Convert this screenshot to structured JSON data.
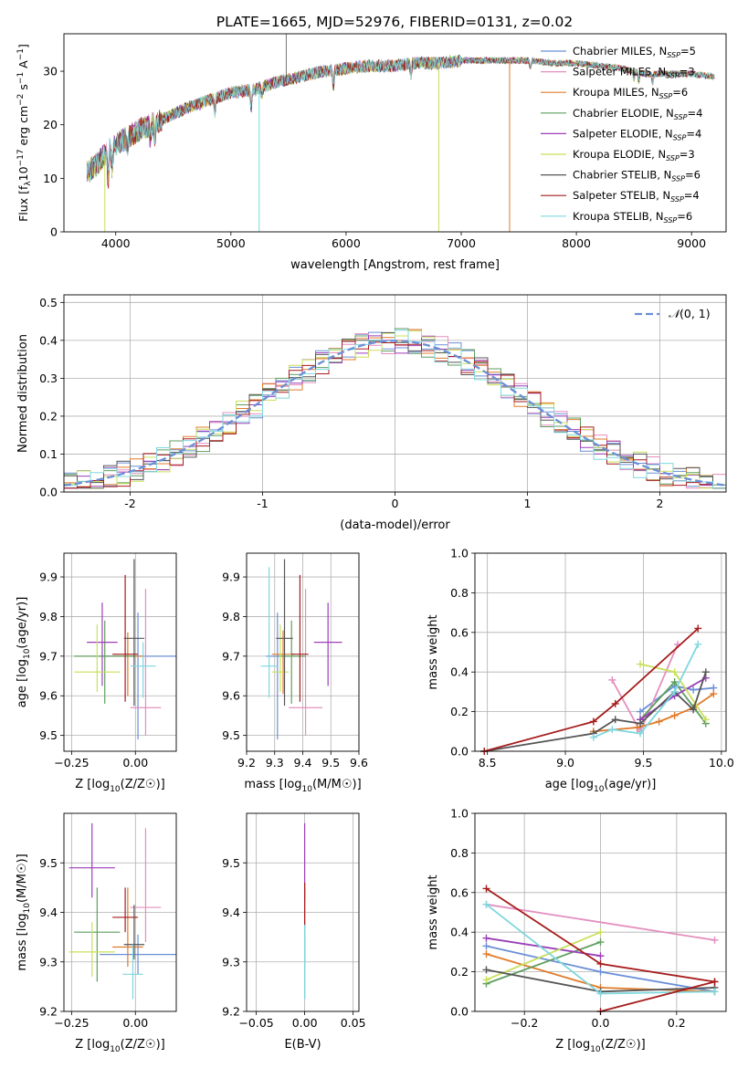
{
  "figure": {
    "title": "PLATE=1665, MJD=52976, FIBERID=0131, z=0.02"
  },
  "colors": {
    "Chabrier MILES": "#6a8fd6",
    "Salpeter MILES": "#e38fbf",
    "Kroupa MILES": "#e07b2a",
    "Chabrier ELODIE": "#5f9e5f",
    "Salpeter ELODIE": "#9b3fb8",
    "Kroupa ELODIE": "#c9e05a",
    "Chabrier STELIB": "#555555",
    "Salpeter STELIB": "#a61c1c",
    "Kroupa STELIB": "#7fd7de",
    "normal": "#6a8fd6"
  },
  "legend": [
    {
      "key": "Chabrier MILES",
      "text": "Chabrier MILES, N",
      "n": "=5"
    },
    {
      "key": "Salpeter MILES",
      "text": "Salpeter MILES, N",
      "n": "=3"
    },
    {
      "key": "Kroupa MILES",
      "text": "Kroupa MILES, N",
      "n": "=6"
    },
    {
      "key": "Chabrier ELODIE",
      "text": "Chabrier ELODIE, N",
      "n": "=4"
    },
    {
      "key": "Salpeter ELODIE",
      "text": "Salpeter ELODIE, N",
      "n": "=4"
    },
    {
      "key": "Kroupa ELODIE",
      "text": "Kroupa ELODIE, N",
      "n": "=3"
    },
    {
      "key": "Chabrier STELIB",
      "text": "Chabrier STELIB, N",
      "n": "=6"
    },
    {
      "key": "Salpeter STELIB",
      "text": "Salpeter STELIB, N",
      "n": "=4"
    },
    {
      "key": "Kroupa STELIB",
      "text": "Kroupa STELIB, N",
      "n": "=6"
    }
  ],
  "legend_sub": "SSP",
  "chart_data": [
    {
      "id": "spectrum",
      "type": "line",
      "xlabel": "wavelength [Angstrom, rest frame]",
      "ylabel": "Flux [f",
      "xlim": [
        3550,
        9300
      ],
      "ylim": [
        0,
        37
      ],
      "xticks": [
        4000,
        5000,
        6000,
        7000,
        8000,
        9000
      ],
      "yticks": [
        0,
        10,
        20,
        30
      ],
      "grid": false,
      "legend_position": "right",
      "continuum": [
        [
          3750,
          11
        ],
        [
          3850,
          13
        ],
        [
          3950,
          15.5
        ],
        [
          4050,
          17
        ],
        [
          4200,
          19
        ],
        [
          4400,
          21
        ],
        [
          4600,
          23
        ],
        [
          4800,
          24.5
        ],
        [
          5000,
          26
        ],
        [
          5200,
          26.5
        ],
        [
          5400,
          28
        ],
        [
          5600,
          29
        ],
        [
          5800,
          30
        ],
        [
          6000,
          30.5
        ],
        [
          6200,
          31
        ],
        [
          6400,
          31
        ],
        [
          6600,
          31.5
        ],
        [
          6800,
          31.5
        ],
        [
          7000,
          32
        ],
        [
          7200,
          32
        ],
        [
          7400,
          32
        ],
        [
          7600,
          32
        ],
        [
          7800,
          31.5
        ],
        [
          8000,
          31.5
        ],
        [
          8200,
          31
        ],
        [
          8400,
          30.5
        ],
        [
          8600,
          29.5
        ],
        [
          8800,
          29.5
        ],
        [
          9000,
          29.5
        ],
        [
          9200,
          29
        ]
      ],
      "spikes": [
        {
          "x": 3905,
          "model": "Kroupa ELODIE"
        },
        {
          "x": 5245,
          "model": "Kroupa STELIB"
        },
        {
          "x": 6805,
          "model": "Kroupa ELODIE"
        },
        {
          "x": 7420,
          "model": "Kroupa MILES"
        }
      ]
    },
    {
      "id": "residuals",
      "type": "step-histogram",
      "xlabel": "(data-model)/error",
      "ylabel": "Normed distribution",
      "xlim": [
        -2.5,
        2.5
      ],
      "ylim": [
        0,
        0.52
      ],
      "xticks": [
        -2,
        -1,
        0,
        1,
        2
      ],
      "yticks": [
        0.0,
        0.1,
        0.2,
        0.3,
        0.4,
        0.5
      ],
      "grid": true,
      "bin_width": 0.1,
      "normal_label": "(0, 1)",
      "normal_label_prefix": "𝒩",
      "legend_position": "top-right"
    },
    {
      "id": "age-Z",
      "type": "errorbar",
      "xlabel": "Z [log",
      "ylabel": "age  [log",
      "xlim": [
        -0.28,
        0.16
      ],
      "ylim": [
        9.46,
        9.96
      ],
      "xticks": [
        -0.25,
        0.0
      ],
      "xticklabels": [
        "−0.25",
        "0.00"
      ],
      "yticks": [
        9.5,
        9.6,
        9.7,
        9.8,
        9.9
      ],
      "grid": true,
      "points": [
        {
          "model": "Chabrier MILES",
          "x": 0.01,
          "y": 9.7,
          "xerr": 0.15,
          "yerr": [
            0.21,
            0.11
          ]
        },
        {
          "model": "Salpeter MILES",
          "x": 0.04,
          "y": 9.57,
          "xerr": 0.06,
          "yerr": [
            0.07,
            0.3
          ]
        },
        {
          "model": "Kroupa MILES",
          "x": -0.03,
          "y": 9.7,
          "xerr": 0.06,
          "yerr": [
            0.1,
            0.06
          ]
        },
        {
          "model": "Chabrier ELODIE",
          "x": -0.12,
          "y": 9.7,
          "xerr": 0.12,
          "yerr": [
            0.12,
            0.09
          ]
        },
        {
          "model": "Salpeter ELODIE",
          "x": -0.13,
          "y": 9.735,
          "xerr": 0.06,
          "yerr": [
            0.11,
            0.1
          ]
        },
        {
          "model": "Kroupa ELODIE",
          "x": -0.15,
          "y": 9.66,
          "xerr": 0.09,
          "yerr": [
            0.05,
            0.12
          ]
        },
        {
          "model": "Chabrier STELIB",
          "x": -0.005,
          "y": 9.745,
          "xerr": 0.04,
          "yerr": [
            0.17,
            0.2
          ]
        },
        {
          "model": "Salpeter STELIB",
          "x": -0.04,
          "y": 9.705,
          "xerr": 0.05,
          "yerr": [
            0.12,
            0.2
          ]
        },
        {
          "model": "Kroupa STELIB",
          "x": 0.03,
          "y": 9.675,
          "xerr": 0.05,
          "yerr": [
            0.08,
            0.06
          ]
        }
      ]
    },
    {
      "id": "age-mass",
      "type": "errorbar",
      "xlabel": "mass [log",
      "ylabel": "",
      "xlim": [
        9.2,
        9.6
      ],
      "ylim": [
        9.46,
        9.96
      ],
      "xticks": [
        9.2,
        9.3,
        9.4,
        9.5,
        9.6
      ],
      "xticklabels": [
        "9.2",
        "9.3",
        "9.4",
        "9.5",
        "9.6"
      ],
      "yticks": [
        9.5,
        9.6,
        9.7,
        9.8,
        9.9
      ],
      "grid": true,
      "points": [
        {
          "model": "Chabrier MILES",
          "x": 9.31,
          "y": 9.7,
          "xerr": 0.04,
          "yerr": [
            0.21,
            0.11
          ]
        },
        {
          "model": "Salpeter MILES",
          "x": 9.41,
          "y": 9.57,
          "xerr": 0.06,
          "yerr": [
            0.07,
            0.3
          ]
        },
        {
          "model": "Kroupa MILES",
          "x": 9.33,
          "y": 9.705,
          "xerr": 0.04,
          "yerr": [
            0.1,
            0.06
          ]
        },
        {
          "model": "Chabrier ELODIE",
          "x": 9.36,
          "y": 9.7,
          "xerr": 0.05,
          "yerr": [
            0.12,
            0.09
          ]
        },
        {
          "model": "Salpeter ELODIE",
          "x": 9.49,
          "y": 9.735,
          "xerr": 0.05,
          "yerr": [
            0.11,
            0.1
          ]
        },
        {
          "model": "Kroupa ELODIE",
          "x": 9.32,
          "y": 9.66,
          "xerr": 0.03,
          "yerr": [
            0.05,
            0.12
          ]
        },
        {
          "model": "Chabrier STELIB",
          "x": 9.335,
          "y": 9.745,
          "xerr": 0.03,
          "yerr": [
            0.17,
            0.2
          ]
        },
        {
          "model": "Salpeter STELIB",
          "x": 9.39,
          "y": 9.705,
          "xerr": 0.03,
          "yerr": [
            0.12,
            0.2
          ]
        },
        {
          "model": "Kroupa STELIB",
          "x": 9.28,
          "y": 9.675,
          "xerr": 0.03,
          "yerr": [
            0.08,
            0.25
          ]
        }
      ]
    },
    {
      "id": "weight-age",
      "type": "line",
      "xlabel": "age  [log",
      "ylabel": "mass weight",
      "xlim": [
        8.42,
        10.03
      ],
      "ylim": [
        0,
        1
      ],
      "xticks": [
        8.5,
        9.0,
        9.5,
        10.0
      ],
      "xticklabels": [
        "8.5",
        "9.0",
        "9.5",
        "10.0"
      ],
      "yticks": [
        0.0,
        0.2,
        0.4,
        0.6,
        0.8,
        1.0
      ],
      "grid": true,
      "series": [
        {
          "model": "Chabrier MILES",
          "x": [
            9.48,
            9.7,
            9.82,
            9.95
          ],
          "y": [
            0.2,
            0.33,
            0.31,
            0.32
          ]
        },
        {
          "model": "Salpeter MILES",
          "x": [
            9.3,
            9.48,
            9.72
          ],
          "y": [
            0.36,
            0.1,
            0.54
          ]
        },
        {
          "model": "Kroupa MILES",
          "x": [
            9.18,
            9.46,
            9.6,
            9.7,
            9.82,
            9.95
          ],
          "y": [
            0.1,
            0.12,
            0.15,
            0.18,
            0.22,
            0.29
          ]
        },
        {
          "model": "Chabrier ELODIE",
          "x": [
            9.48,
            9.7,
            9.9
          ],
          "y": [
            0.16,
            0.35,
            0.14
          ]
        },
        {
          "model": "Salpeter ELODIE",
          "x": [
            9.48,
            9.7,
            9.9
          ],
          "y": [
            0.16,
            0.28,
            0.37
          ]
        },
        {
          "model": "Kroupa ELODIE",
          "x": [
            9.48,
            9.7,
            9.9
          ],
          "y": [
            0.44,
            0.4,
            0.16
          ]
        },
        {
          "model": "Chabrier STELIB",
          "x": [
            8.48,
            9.18,
            9.32,
            9.48,
            9.7,
            9.82,
            9.9
          ],
          "y": [
            0.0,
            0.09,
            0.16,
            0.14,
            0.3,
            0.21,
            0.4
          ]
        },
        {
          "model": "Salpeter STELIB",
          "x": [
            8.48,
            9.18,
            9.32,
            9.85
          ],
          "y": [
            0.0,
            0.15,
            0.24,
            0.62
          ]
        },
        {
          "model": "Kroupa STELIB",
          "x": [
            9.18,
            9.3,
            9.48,
            9.7,
            9.85
          ],
          "y": [
            0.07,
            0.11,
            0.09,
            0.3,
            0.54
          ]
        }
      ]
    },
    {
      "id": "mass-Z",
      "type": "errorbar",
      "xlabel": "Z [log",
      "ylabel": "mass [log",
      "xlim": [
        -0.28,
        0.16
      ],
      "ylim": [
        9.2,
        9.6
      ],
      "xticks": [
        -0.25,
        0.0
      ],
      "xticklabels": [
        "−0.25",
        "0.00"
      ],
      "yticks": [
        9.2,
        9.3,
        9.4,
        9.5
      ],
      "grid": true,
      "points": [
        {
          "model": "Chabrier MILES",
          "x": 0.01,
          "y": 9.315,
          "xerr": 0.15,
          "yerr": [
            0.04,
            0.04
          ]
        },
        {
          "model": "Salpeter MILES",
          "x": 0.04,
          "y": 9.41,
          "xerr": 0.06,
          "yerr": [
            0.07,
            0.16
          ]
        },
        {
          "model": "Kroupa MILES",
          "x": -0.03,
          "y": 9.33,
          "xerr": 0.06,
          "yerr": [
            0.04,
            0.12
          ]
        },
        {
          "model": "Chabrier ELODIE",
          "x": -0.15,
          "y": 9.36,
          "xerr": 0.09,
          "yerr": [
            0.1,
            0.09
          ]
        },
        {
          "model": "Salpeter ELODIE",
          "x": -0.17,
          "y": 9.49,
          "xerr": 0.09,
          "yerr": [
            0.06,
            0.09
          ]
        },
        {
          "model": "Kroupa ELODIE",
          "x": -0.17,
          "y": 9.32,
          "xerr": 0.09,
          "yerr": [
            0.05,
            0.06
          ]
        },
        {
          "model": "Chabrier STELIB",
          "x": -0.005,
          "y": 9.335,
          "xerr": 0.04,
          "yerr": [
            0.03,
            0.08
          ]
        },
        {
          "model": "Salpeter STELIB",
          "x": -0.04,
          "y": 9.39,
          "xerr": 0.05,
          "yerr": [
            0.03,
            0.06
          ]
        },
        {
          "model": "Kroupa STELIB",
          "x": -0.01,
          "y": 9.275,
          "xerr": 0.04,
          "yerr": [
            0.05,
            0.06
          ]
        }
      ]
    },
    {
      "id": "mass-EBV",
      "type": "errorbar",
      "xlabel": "E(B-V)",
      "ylabel": "",
      "xlim": [
        -0.06,
        0.056
      ],
      "ylim": [
        9.2,
        9.6
      ],
      "xticks": [
        -0.05,
        0.0,
        0.05
      ],
      "xticklabels": [
        "−0.05",
        "0.00",
        "0.05"
      ],
      "yticks": [
        9.2,
        9.3,
        9.4,
        9.5
      ],
      "grid": true,
      "points": [
        {
          "model": "Chabrier MILES",
          "x": 0.0,
          "y": 9.315,
          "xerr": 0,
          "yerr": [
            0.09,
            0.04
          ]
        },
        {
          "model": "Kroupa MILES",
          "x": 0.0,
          "y": 9.33,
          "xerr": 0,
          "yerr": [
            0.03,
            0.12
          ]
        },
        {
          "model": "Salpeter ELODIE",
          "x": 0.0,
          "y": 9.49,
          "xerr": 0,
          "yerr": [
            0.07,
            0.09
          ]
        },
        {
          "model": "Salpeter STELIB",
          "x": 0.0,
          "y": 9.39,
          "xerr": 0,
          "yerr": [
            0.02,
            0.07
          ]
        },
        {
          "model": "Kroupa STELIB",
          "x": 0.0,
          "y": 9.275,
          "xerr": 0,
          "yerr": [
            0.05,
            0.1
          ]
        }
      ]
    },
    {
      "id": "weight-Z",
      "type": "line",
      "xlabel": "Z [log",
      "ylabel": "mass weight",
      "xlim": [
        -0.33,
        0.33
      ],
      "ylim": [
        0,
        1
      ],
      "xticks": [
        -0.2,
        0.0,
        0.2
      ],
      "xticklabels": [
        "−0.2",
        "0.0",
        "0.2"
      ],
      "yticks": [
        0.0,
        0.2,
        0.4,
        0.6,
        0.8,
        1.0
      ],
      "grid": true,
      "series": [
        {
          "model": "Chabrier MILES",
          "x": [
            -0.3,
            0.0,
            0.3
          ],
          "y": [
            0.33,
            0.2,
            0.1
          ]
        },
        {
          "model": "Salpeter MILES",
          "x": [
            -0.3,
            0.3
          ],
          "y": [
            0.54,
            0.36
          ]
        },
        {
          "model": "Kroupa MILES",
          "x": [
            -0.3,
            0.0,
            0.3
          ],
          "y": [
            0.29,
            0.12,
            0.1
          ]
        },
        {
          "model": "Chabrier ELODIE",
          "x": [
            -0.3,
            0.0
          ],
          "y": [
            0.14,
            0.35
          ]
        },
        {
          "model": "Salpeter ELODIE",
          "x": [
            -0.3,
            0.0
          ],
          "y": [
            0.37,
            0.28
          ]
        },
        {
          "model": "Kroupa ELODIE",
          "x": [
            -0.3,
            0.0
          ],
          "y": [
            0.16,
            0.4
          ]
        },
        {
          "model": "Chabrier STELIB",
          "x": [
            -0.3,
            0.0,
            0.3
          ],
          "y": [
            0.21,
            0.1,
            0.12
          ]
        },
        {
          "model": "Salpeter STELIB",
          "x": [
            -0.3,
            0.0,
            0.3
          ],
          "y": [
            0.62,
            0.24,
            0.15
          ]
        },
        {
          "model": "Kroupa STELIB",
          "x": [
            -0.3,
            0.0,
            0.3
          ],
          "y": [
            0.54,
            0.09,
            0.1
          ]
        },
        {
          "model": "Salpeter STELIB",
          "x": [
            0.0,
            0.3
          ],
          "y": [
            0.0,
            0.15
          ]
        }
      ]
    }
  ]
}
